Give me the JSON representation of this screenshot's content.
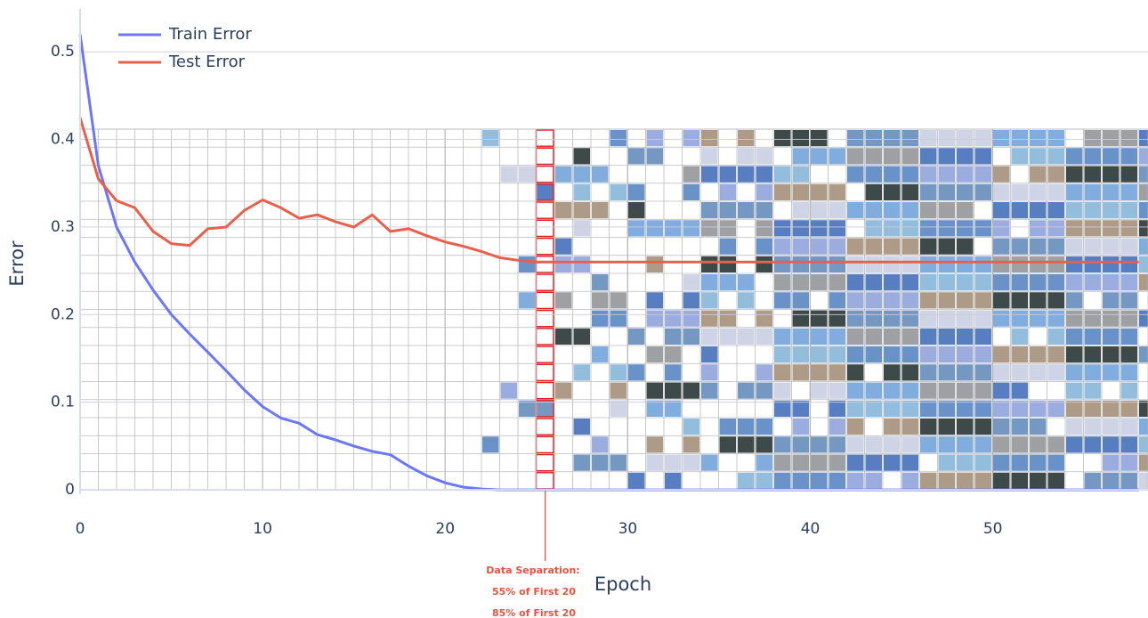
{
  "chart_data": {
    "type": "line",
    "x_label": "Epoch",
    "y_label": "Error",
    "x": [
      0,
      1,
      2,
      3,
      4,
      5,
      6,
      7,
      8,
      9,
      10,
      11,
      12,
      13,
      14,
      15,
      16,
      17,
      18,
      19,
      20,
      21,
      22,
      23,
      24,
      25,
      26,
      27,
      28,
      29,
      30,
      31,
      32,
      33,
      34,
      35,
      36,
      37,
      38,
      39,
      40,
      41,
      42,
      43,
      44,
      45,
      46,
      47,
      48,
      49,
      50,
      51,
      52,
      53,
      54,
      55,
      56,
      57,
      58
    ],
    "series": [
      {
        "name": "Train Error",
        "color": "#6b77f5",
        "values": [
          0.52,
          0.37,
          0.3,
          0.26,
          0.228,
          0.2,
          0.178,
          0.157,
          0.136,
          0.114,
          0.095,
          0.082,
          0.076,
          0.063,
          0.057,
          0.05,
          0.044,
          0.04,
          0.027,
          0.016,
          0.008,
          0.003,
          0.001,
          0,
          0,
          0,
          0,
          0,
          0,
          0,
          0,
          0,
          0,
          0,
          0,
          0,
          0,
          0,
          0,
          0,
          0,
          0,
          0,
          0,
          0,
          0,
          0,
          0,
          0,
          0,
          0,
          0,
          0,
          0,
          0,
          0,
          0,
          0,
          0
        ]
      },
      {
        "name": "Test Error",
        "color": "#e8604c",
        "values": [
          0.425,
          0.355,
          0.33,
          0.322,
          0.295,
          0.281,
          0.279,
          0.298,
          0.3,
          0.319,
          0.331,
          0.322,
          0.31,
          0.314,
          0.306,
          0.3,
          0.314,
          0.295,
          0.298,
          0.29,
          0.283,
          0.278,
          0.272,
          0.265,
          0.262,
          0.26,
          0.26,
          0.26,
          0.26,
          0.26,
          0.26,
          0.26,
          0.26,
          0.26,
          0.26,
          0.26,
          0.26,
          0.26,
          0.26,
          0.26,
          0.26,
          0.26,
          0.26,
          0.26,
          0.26,
          0.26,
          0.26,
          0.26,
          0.26,
          0.26,
          0.26,
          0.26,
          0.26,
          0.26,
          0.26,
          0.26,
          0.26,
          0.26,
          0.26
        ]
      }
    ],
    "xlim": [
      0,
      58.5
    ],
    "ylim": [
      -0.005,
      0.549
    ],
    "xticks": [
      0,
      10,
      20,
      30,
      40,
      50
    ],
    "yticks": [
      0,
      0.1,
      0.2,
      0.3,
      0.4,
      0.5
    ],
    "annotation": {
      "title": "Data Separation:",
      "lines": [
        "55% of First 20",
        "85% of First 20"
      ]
    }
  }
}
